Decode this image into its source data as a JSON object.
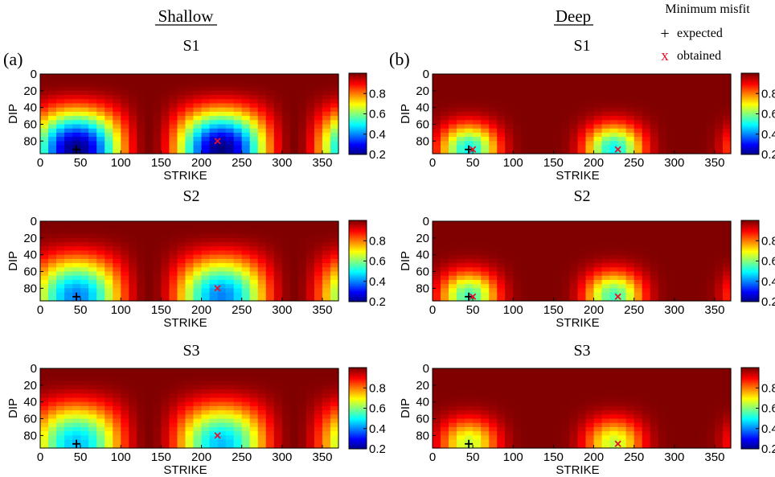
{
  "headers": {
    "left": "Shallow",
    "right": "Deep",
    "panel_a": "(a)",
    "panel_b": "(b)"
  },
  "legend": {
    "title": "Minimum misfit",
    "expected_label": "expected",
    "obtained_label": "obtained",
    "expected_symbol": "+",
    "obtained_symbol": "x",
    "expected_color": "#000000",
    "obtained_color": "#e8102a",
    "placement": "top-right"
  },
  "colorbar": {
    "ticks": [
      "0.2",
      "0.4",
      "0.6",
      "0.8"
    ],
    "range": [
      0.2,
      1.0
    ],
    "colormap": "jet"
  },
  "chart_data": [
    {
      "type": "heatmap",
      "title": "S1",
      "group": "Shallow",
      "xlabel": "STRIKE",
      "ylabel": "DIP",
      "xlim": [
        0,
        370
      ],
      "ylim": [
        0,
        95
      ],
      "xticks": [
        "0",
        "50",
        "100",
        "150",
        "200",
        "250",
        "300",
        "350"
      ],
      "yticks": [
        "0",
        "20",
        "40",
        "60",
        "80"
      ],
      "expected": {
        "strike": 45,
        "dip": 90
      },
      "obtained": {
        "strike": 220,
        "dip": 80
      },
      "misfit_range": [
        0.2,
        1.0
      ]
    },
    {
      "type": "heatmap",
      "title": "S1",
      "group": "Deep",
      "xlabel": "STRIKE",
      "ylabel": "DIP",
      "xlim": [
        0,
        370
      ],
      "ylim": [
        0,
        95
      ],
      "xticks": [
        "0",
        "50",
        "100",
        "150",
        "200",
        "250",
        "300",
        "350"
      ],
      "yticks": [
        "0",
        "20",
        "40",
        "60",
        "80"
      ],
      "expected": {
        "strike": 45,
        "dip": 90
      },
      "obtained": {
        "strike": 50,
        "dip": 90
      },
      "obtained2": {
        "strike": 230,
        "dip": 90
      },
      "misfit_range": [
        0.5,
        1.0
      ]
    },
    {
      "type": "heatmap",
      "title": "S2",
      "group": "Shallow",
      "xlabel": "STRIKE",
      "ylabel": "DIP",
      "xlim": [
        0,
        370
      ],
      "ylim": [
        0,
        95
      ],
      "xticks": [
        "0",
        "50",
        "100",
        "150",
        "200",
        "250",
        "300",
        "350"
      ],
      "yticks": [
        "0",
        "20",
        "40",
        "60",
        "80"
      ],
      "expected": {
        "strike": 45,
        "dip": 90
      },
      "obtained": {
        "strike": 220,
        "dip": 80
      },
      "misfit_range": [
        0.4,
        1.0
      ]
    },
    {
      "type": "heatmap",
      "title": "S2",
      "group": "Deep",
      "xlabel": "STRIKE",
      "ylabel": "DIP",
      "xlim": [
        0,
        370
      ],
      "ylim": [
        0,
        95
      ],
      "xticks": [
        "0",
        "50",
        "100",
        "150",
        "200",
        "250",
        "300",
        "350"
      ],
      "yticks": [
        "0",
        "20",
        "40",
        "60",
        "80"
      ],
      "expected": {
        "strike": 45,
        "dip": 90
      },
      "obtained": {
        "strike": 50,
        "dip": 90
      },
      "obtained2": {
        "strike": 230,
        "dip": 90
      },
      "misfit_range": [
        0.55,
        1.0
      ]
    },
    {
      "type": "heatmap",
      "title": "S3",
      "group": "Shallow",
      "xlabel": "STRIKE",
      "ylabel": "DIP",
      "xlim": [
        0,
        370
      ],
      "ylim": [
        0,
        95
      ],
      "xticks": [
        "0",
        "50",
        "100",
        "150",
        "200",
        "250",
        "300",
        "350"
      ],
      "yticks": [
        "0",
        "20",
        "40",
        "60",
        "80"
      ],
      "expected": {
        "strike": 45,
        "dip": 90
      },
      "obtained": {
        "strike": 220,
        "dip": 80
      },
      "misfit_range": [
        0.45,
        1.0
      ]
    },
    {
      "type": "heatmap",
      "title": "S3",
      "group": "Deep",
      "xlabel": "STRIKE",
      "ylabel": "DIP",
      "xlim": [
        0,
        370
      ],
      "ylim": [
        0,
        95
      ],
      "xticks": [
        "0",
        "50",
        "100",
        "150",
        "200",
        "250",
        "300",
        "350"
      ],
      "yticks": [
        "0",
        "20",
        "40",
        "60",
        "80"
      ],
      "expected": {
        "strike": 45,
        "dip": 90
      },
      "obtained": {
        "strike": 230,
        "dip": 90
      },
      "misfit_range": [
        0.65,
        1.0
      ]
    }
  ]
}
